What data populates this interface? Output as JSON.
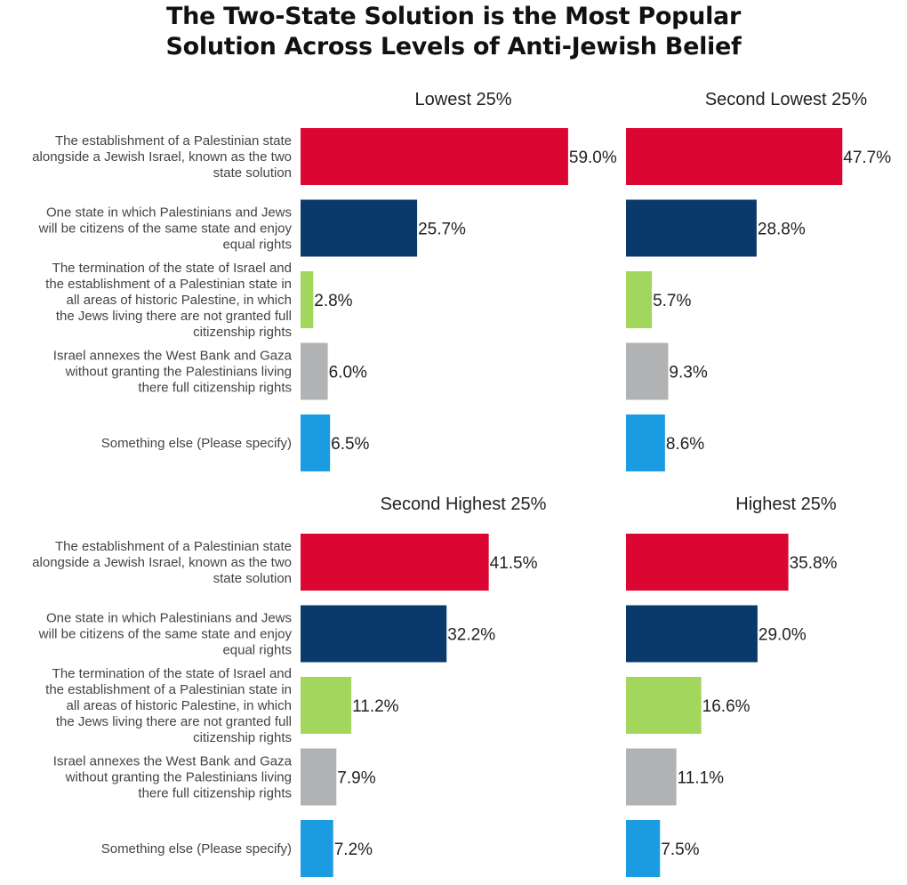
{
  "chart_data": {
    "type": "bar",
    "orientation": "horizontal",
    "title_lines": [
      "The Two-State Solution is the Most Popular",
      "Solution Across Levels of Anti-Jewish Belief"
    ],
    "categories": [
      {
        "lines": [
          "The establishment of a Palestinian state",
          "alongside a Jewish Israel, known as the two",
          "state solution"
        ],
        "color": "#dc0632"
      },
      {
        "lines": [
          "One state in which Palestinians and Jews",
          "will be citizens of the same state and enjoy",
          "equal rights"
        ],
        "color": "#0a3a6b"
      },
      {
        "lines": [
          "The termination of the state of Israel and",
          "the establishment of a Palestinian state in",
          "all areas of historic Palestine, in which",
          "the Jews living there are not granted full",
          "citizenship rights"
        ],
        "color": "#a3d65c"
      },
      {
        "lines": [
          "Israel annexes the West Bank and Gaza",
          "without granting the Palestinians living",
          "there full citizenship rights"
        ],
        "color": "#b1b2b4"
      },
      {
        "lines": [
          "Something else (Please specify)"
        ],
        "color": "#1b9ce0"
      }
    ],
    "value_suffix": "%",
    "panels": [
      {
        "title": "Lowest 25%",
        "values": [
          59.0,
          25.7,
          2.8,
          6.0,
          6.5
        ],
        "labels": [
          "59.0%",
          "25.7%",
          "2.8%",
          "6.0%",
          "6.5%"
        ]
      },
      {
        "title": "Second Lowest 25%",
        "values": [
          47.7,
          28.8,
          5.7,
          9.3,
          8.6
        ],
        "labels": [
          "47.7%",
          "28.8%",
          "5.7%",
          "9.3%",
          "8.6%"
        ]
      },
      {
        "title": "Second Highest 25%",
        "values": [
          41.5,
          32.2,
          11.2,
          7.9,
          7.2
        ],
        "labels": [
          "41.5%",
          "32.2%",
          "11.2%",
          "7.9%",
          "7.2%"
        ]
      },
      {
        "title": "Highest 25%",
        "values": [
          35.8,
          29.0,
          16.6,
          11.1,
          7.5
        ],
        "labels": [
          "35.8%",
          "29.0%",
          "16.6%",
          "11.1%",
          "7.5%"
        ]
      }
    ],
    "grid": false,
    "legend": "none"
  }
}
